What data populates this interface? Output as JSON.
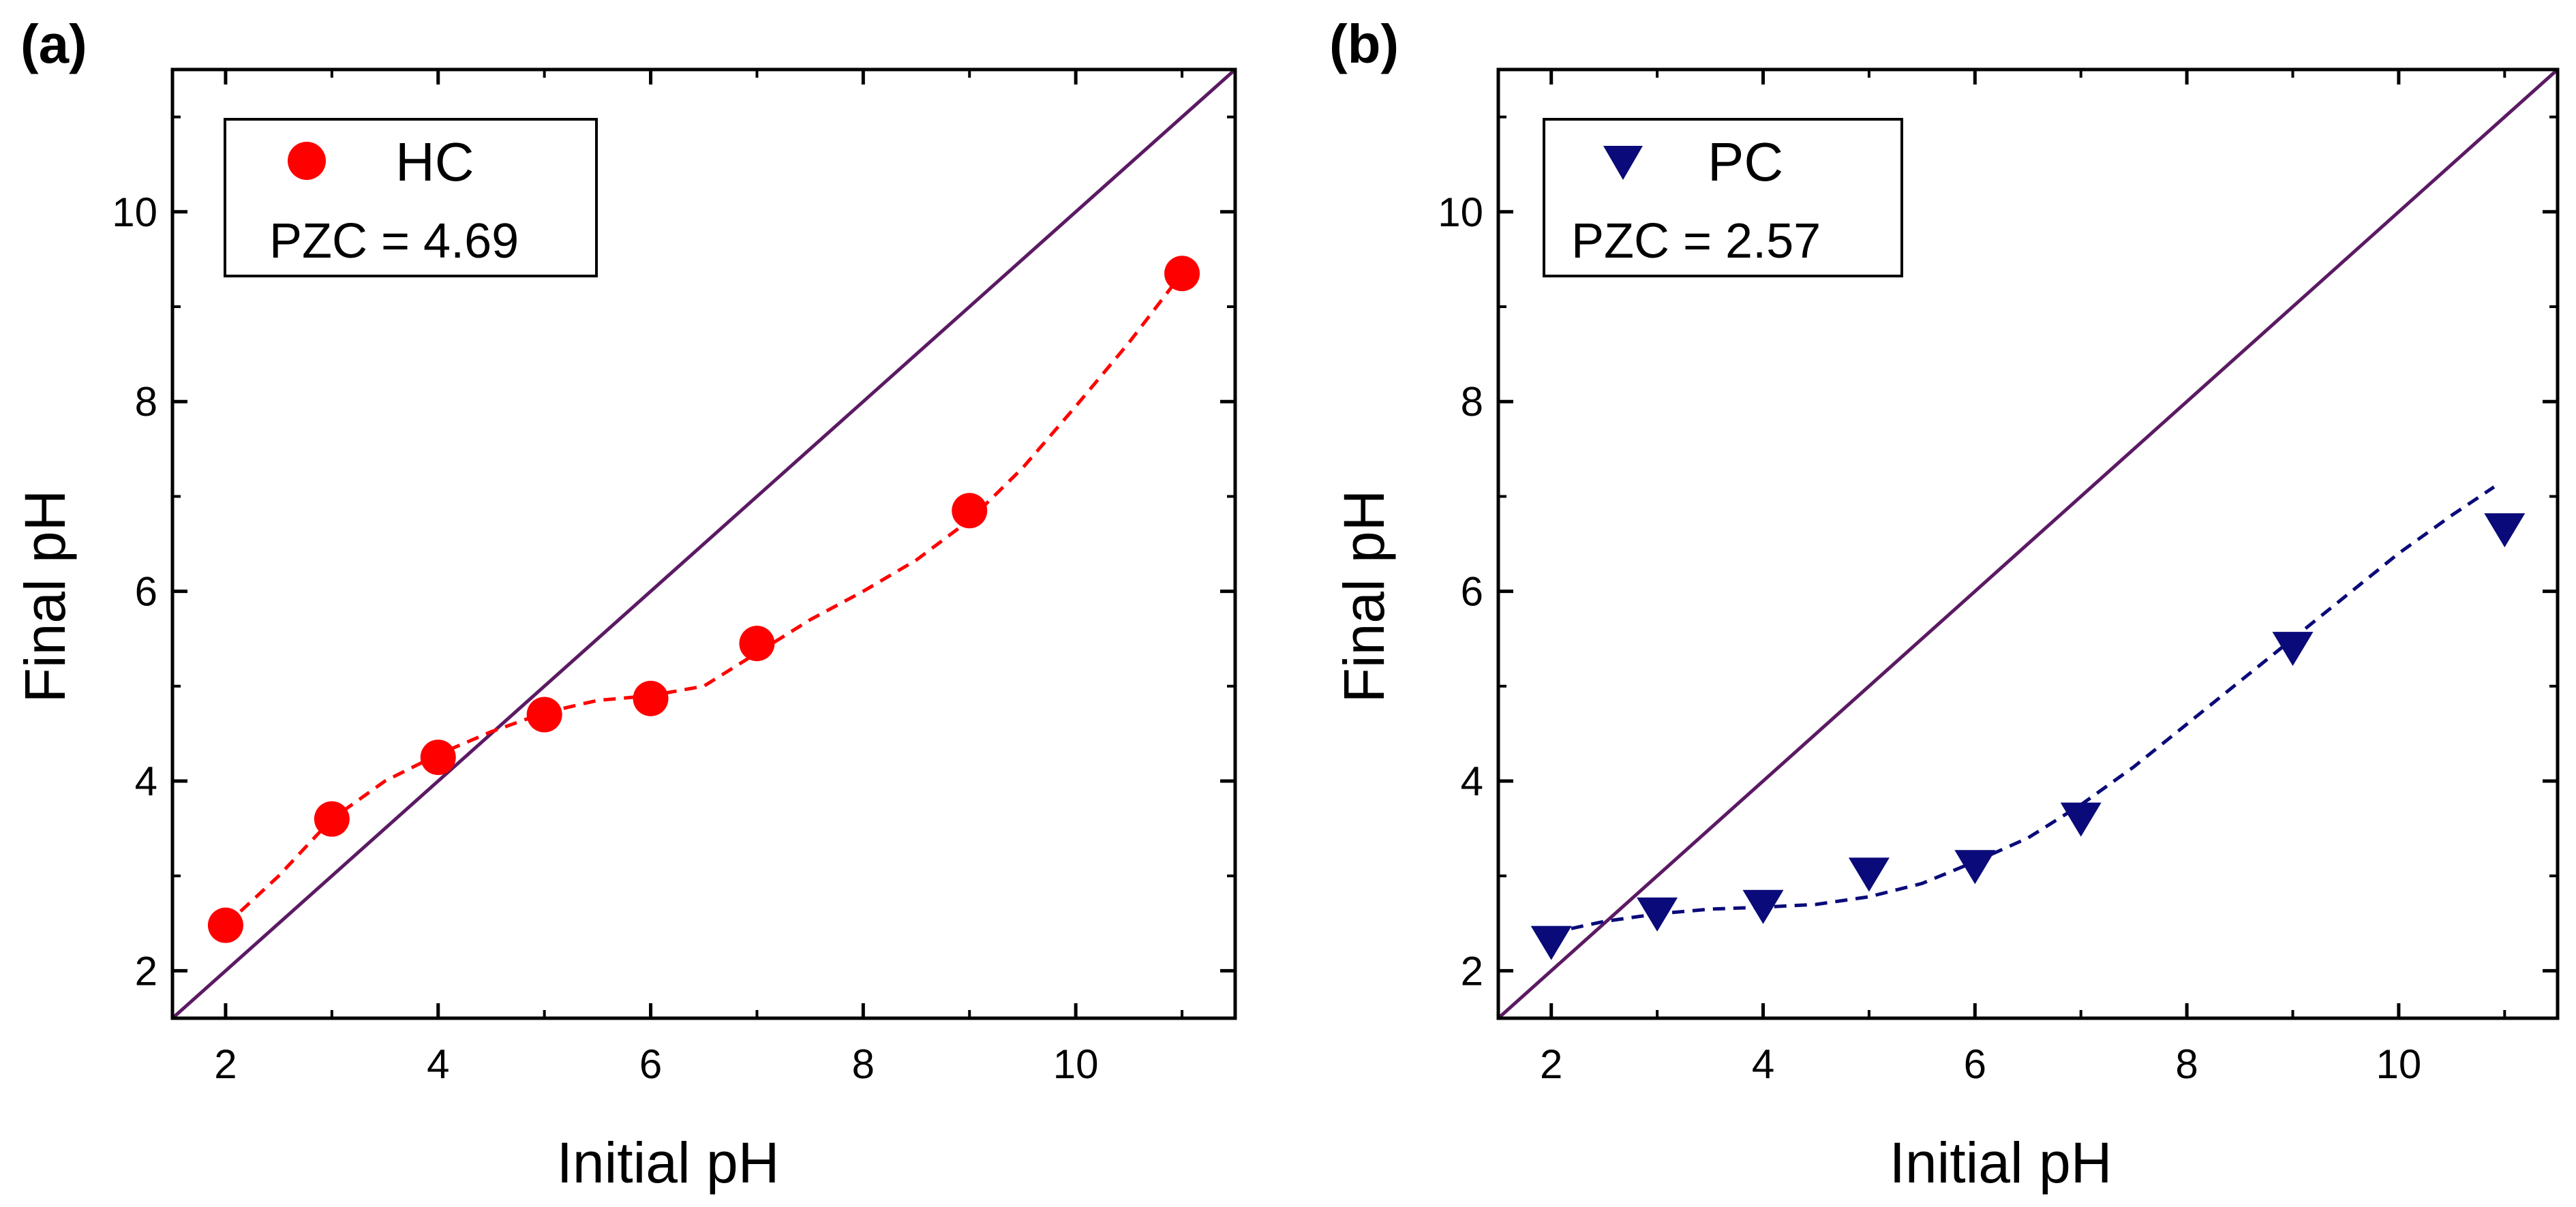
{
  "colors": {
    "identity_line": "#5b1a63",
    "hc": "#ff0000",
    "pc": "#0a0a7a",
    "axis": "#000000"
  },
  "chart_data": [
    {
      "type": "scatter",
      "panel_label": "(a)",
      "xlabel": "Initial pH",
      "ylabel": "Final pH",
      "xlim": [
        1.5,
        11.5
      ],
      "ylim": [
        1.5,
        11.5
      ],
      "xticks": [
        2,
        4,
        6,
        8,
        10
      ],
      "yticks": [
        2,
        4,
        6,
        8,
        10
      ],
      "legend": {
        "name": "HC",
        "pzc_text": "PZC = 4.69",
        "placement": "top-left"
      },
      "marker": "circle",
      "color": "#ff0000",
      "series": [
        {
          "name": "HC",
          "x": [
            2,
            3,
            4,
            5,
            6,
            7,
            9,
            11
          ],
          "y": [
            2.48,
            3.6,
            4.25,
            4.7,
            4.87,
            5.45,
            6.85,
            9.35
          ]
        }
      ],
      "fit_curve": {
        "style": "dashed",
        "x": [
          2,
          2.5,
          3,
          3.5,
          4,
          4.5,
          5,
          5.5,
          6,
          6.5,
          7,
          7.5,
          8,
          8.5,
          9,
          9.5,
          10,
          10.5,
          11
        ],
        "y": [
          2.48,
          3.0,
          3.6,
          4.0,
          4.28,
          4.52,
          4.72,
          4.85,
          4.9,
          5.0,
          5.35,
          5.7,
          6.0,
          6.33,
          6.75,
          7.3,
          7.95,
          8.62,
          9.35
        ]
      },
      "identity_line": {
        "x": [
          1.5,
          11.5
        ],
        "y": [
          1.5,
          11.5
        ]
      }
    },
    {
      "type": "scatter",
      "panel_label": "(b)",
      "xlabel": "Initial pH",
      "ylabel": "Final pH",
      "xlim": [
        1.5,
        11.5
      ],
      "ylim": [
        1.5,
        11.5
      ],
      "xticks": [
        2,
        4,
        6,
        8,
        10
      ],
      "yticks": [
        2,
        4,
        6,
        8,
        10
      ],
      "legend": {
        "name": "PC",
        "pzc_text": "PZC = 2.57",
        "placement": "top-left"
      },
      "marker": "triangle-down",
      "color": "#0a0a7a",
      "series": [
        {
          "name": "PC",
          "x": [
            2,
            3,
            4,
            5,
            6,
            7,
            9,
            11
          ],
          "y": [
            2.3,
            2.6,
            2.68,
            3.02,
            3.1,
            3.6,
            5.4,
            6.65
          ]
        }
      ],
      "fit_curve": {
        "style": "dashed",
        "x": [
          2,
          2.5,
          3,
          3.5,
          4,
          4.5,
          5,
          5.5,
          6,
          6.5,
          7,
          7.5,
          8,
          8.5,
          9,
          9.5,
          10,
          10.5,
          10.9
        ],
        "y": [
          2.4,
          2.52,
          2.6,
          2.65,
          2.67,
          2.7,
          2.78,
          2.92,
          3.15,
          3.4,
          3.75,
          4.15,
          4.6,
          5.05,
          5.5,
          5.95,
          6.4,
          6.8,
          7.1
        ]
      },
      "identity_line": {
        "x": [
          1.5,
          11.5
        ],
        "y": [
          1.5,
          11.5
        ]
      }
    }
  ]
}
